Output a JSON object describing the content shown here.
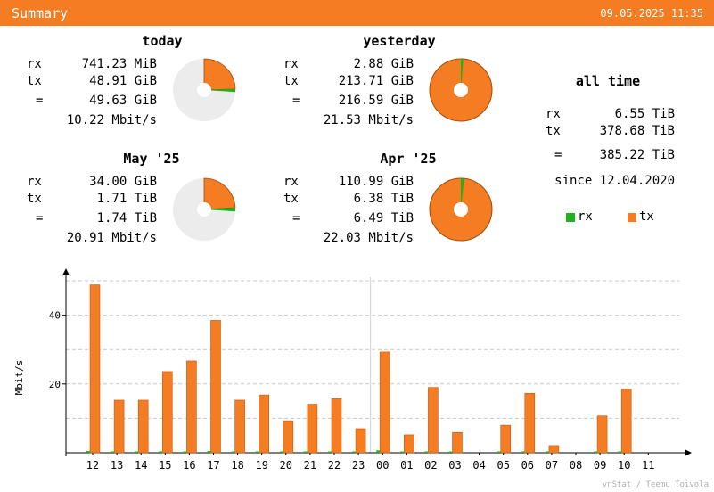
{
  "header": {
    "title": "Summary",
    "timestamp": "09.05.2025 11:35"
  },
  "colors": {
    "rx": "#1bb51b",
    "tx": "#f47c22",
    "pie_bg": "#ececec",
    "grid": "#c8c8c8"
  },
  "stats": {
    "today": {
      "title": "today",
      "rx": "741.23 MiB",
      "tx": "48.91 GiB",
      "total": "49.63 GiB",
      "rate": "10.22 Mbit/s",
      "pie_fraction": 0.26,
      "rx_share": 0.015,
      "donut": false
    },
    "yesterday": {
      "title": "yesterday",
      "rx": "2.88 GiB",
      "tx": "213.71 GiB",
      "total": "216.59 GiB",
      "rate": "21.53 Mbit/s",
      "pie_fraction": 1.0,
      "rx_share": 0.013,
      "donut": true
    },
    "may25": {
      "title": "May '25",
      "rx": "34.00 GiB",
      "tx": "1.71 TiB",
      "total": "1.74 TiB",
      "rate": "20.91 Mbit/s",
      "pie_fraction": 0.26,
      "rx_share": 0.019,
      "donut": false
    },
    "apr25": {
      "title": "Apr '25",
      "rx": "110.99 GiB",
      "tx": "6.38 TiB",
      "total": "6.49 TiB",
      "rate": "22.03 Mbit/s",
      "pie_fraction": 1.0,
      "rx_share": 0.017,
      "donut": true
    },
    "alltime": {
      "title": "all time",
      "rx": "6.55 TiB",
      "tx": "378.68 TiB",
      "total": "385.22 TiB",
      "since": "since 12.04.2020"
    }
  },
  "labels": {
    "rx": "rx",
    "tx": "tx",
    "eq": "="
  },
  "legend": {
    "rx": "rx",
    "tx": "tx"
  },
  "credit": "vnStat / Teemu Toivola",
  "chart_data": {
    "type": "bar",
    "ylabel": "Mbit/s",
    "ylim": [
      0,
      50
    ],
    "yticks": [
      20,
      40
    ],
    "grid": true,
    "categories": [
      "12",
      "13",
      "14",
      "15",
      "16",
      "17",
      "18",
      "19",
      "20",
      "21",
      "22",
      "23",
      "00",
      "01",
      "02",
      "03",
      "04",
      "05",
      "06",
      "07",
      "08",
      "09",
      "10",
      "11"
    ],
    "divider_after_index": 11,
    "series": [
      {
        "name": "rx",
        "values": [
          0.5,
          0.3,
          0.3,
          0.4,
          0.4,
          0.5,
          0.3,
          0.3,
          0.3,
          0.3,
          0.3,
          0.2,
          0.7,
          0.2,
          0.3,
          0.1,
          0,
          0.2,
          0.3,
          0.1,
          0,
          0.2,
          0.3,
          0
        ]
      },
      {
        "name": "tx",
        "values": [
          48.8,
          15.3,
          15.3,
          23.6,
          26.7,
          38.5,
          15.3,
          16.8,
          9.3,
          14.1,
          15.7,
          7.0,
          29.3,
          5.2,
          19.0,
          5.9,
          0,
          8.0,
          17.3,
          2.1,
          0,
          10.7,
          18.5,
          0
        ]
      }
    ]
  }
}
